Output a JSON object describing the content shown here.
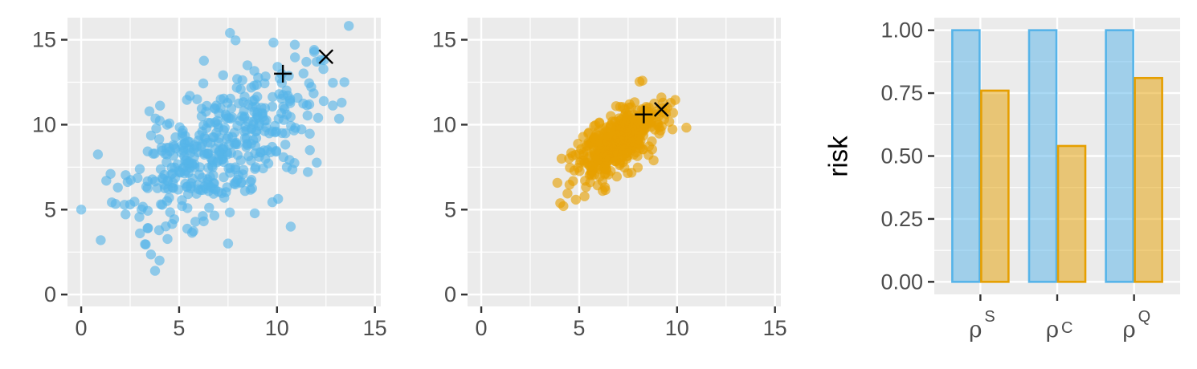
{
  "colors": {
    "panel_bg": "#ebebeb",
    "grid": "#ffffff",
    "blue": "#56b4e9",
    "orange": "#e69f00",
    "marker": "#000000"
  },
  "chart_data": [
    {
      "type": "scatter",
      "title": "",
      "xlabel": "",
      "ylabel": "",
      "xlim": [
        -0.7,
        15.3
      ],
      "ylim": [
        -0.7,
        16.3
      ],
      "xticks": [
        "0",
        "5",
        "10",
        "15"
      ],
      "yticks": [
        "0",
        "5",
        "10",
        "15"
      ],
      "color": "#56b4e9",
      "cloud": {
        "n": 430,
        "mean": [
          7.0,
          8.6
        ],
        "sd": [
          2.3,
          2.3
        ],
        "corr": 0.58,
        "seed": 11
      },
      "extra_points": [
        [
          0.0,
          5.0
        ],
        [
          1.0,
          3.2
        ],
        [
          4.0,
          2.0
        ],
        [
          7.5,
          3.0
        ],
        [
          7.6,
          15.4
        ],
        [
          13.3,
          11.3
        ],
        [
          12.4,
          13.8
        ],
        [
          11.9,
          14.4
        ],
        [
          10.5,
          7.5
        ],
        [
          1.5,
          7.1
        ],
        [
          3.0,
          3.6
        ],
        [
          10.7,
          4.0
        ],
        [
          12.1,
          10.4
        ],
        [
          2.5,
          5.3
        ],
        [
          11.5,
          13.7
        ]
      ],
      "markers": [
        {
          "shape": "plus",
          "x": 10.3,
          "y": 13.0
        },
        {
          "shape": "cross",
          "x": 12.5,
          "y": 14.0
        }
      ]
    },
    {
      "type": "scatter",
      "title": "",
      "xlabel": "",
      "ylabel": "",
      "xlim": [
        -0.7,
        15.3
      ],
      "ylim": [
        -0.7,
        16.3
      ],
      "xticks": [
        "0",
        "5",
        "10",
        "15"
      ],
      "yticks": [
        "0",
        "5",
        "10",
        "15"
      ],
      "color": "#e69f00",
      "cloud": {
        "n": 430,
        "mean": [
          6.9,
          8.9
        ],
        "sd": [
          1.05,
          1.1
        ],
        "corr": 0.62,
        "seed": 23
      },
      "extra_points": [
        [
          4.1,
          8.0
        ],
        [
          9.8,
          10.7
        ],
        [
          9.2,
          11.6
        ],
        [
          8.8,
          7.9
        ],
        [
          6.2,
          6.1
        ],
        [
          5.3,
          6.7
        ]
      ],
      "markers": [
        {
          "shape": "plus",
          "x": 8.3,
          "y": 10.6
        },
        {
          "shape": "cross",
          "x": 9.2,
          "y": 10.9
        }
      ]
    },
    {
      "type": "bar",
      "title": "",
      "xlabel": "",
      "ylabel": "risk",
      "ylim": [
        -0.05,
        1.05
      ],
      "yticks": [
        "0.00",
        "0.25",
        "0.50",
        "0.75",
        "1.00"
      ],
      "categories": [
        {
          "main": "ρ",
          "sup": "S",
          "sub": ""
        },
        {
          "main": "ρ",
          "sup": "",
          "sub": "C"
        },
        {
          "main": "ρ",
          "sup": "Q",
          "sub": ""
        }
      ],
      "series": [
        {
          "color": "#56b4e9",
          "values": [
            1.0,
            1.0,
            1.0
          ]
        },
        {
          "color": "#e69f00",
          "values": [
            0.76,
            0.54,
            0.81
          ]
        }
      ]
    }
  ]
}
